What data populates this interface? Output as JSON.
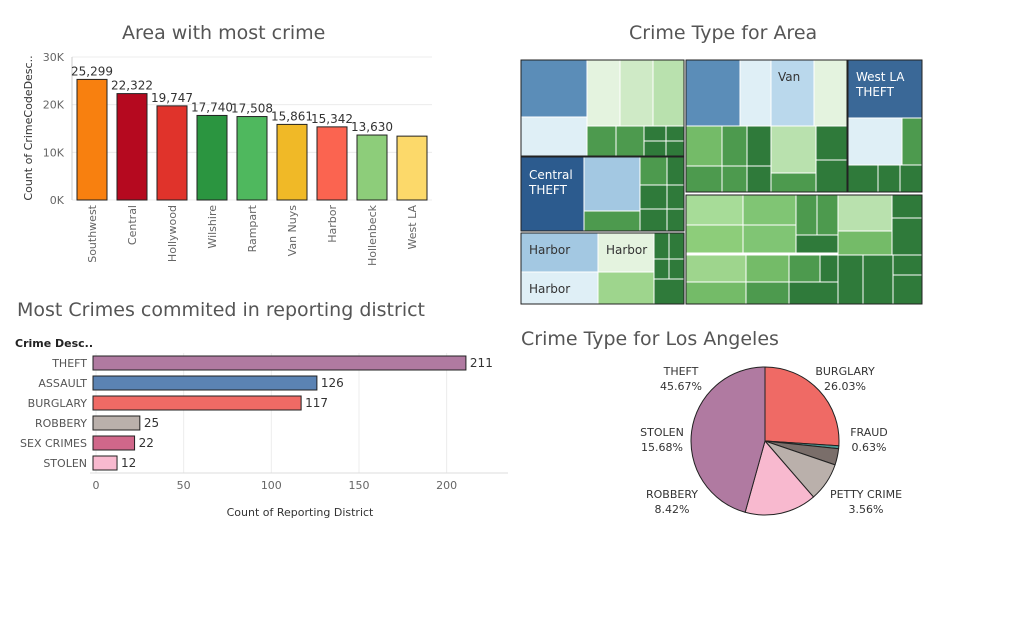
{
  "chart_data": [
    {
      "id": "area",
      "type": "bar",
      "title": "Area with most crime",
      "ylabel": "Count of CrimeCodeDesc..",
      "ylim": [
        0,
        30000
      ],
      "yticks": [
        0,
        10000,
        20000,
        30000
      ],
      "ytick_labels": [
        "0K",
        "10K",
        "20K",
        "30K"
      ],
      "categories": [
        "Southwest",
        "Central",
        "Hollywood",
        "Wilshire",
        "Rampart",
        "Van Nuys",
        "Harbor",
        "Hollenbeck",
        "West LA"
      ],
      "values": [
        25299,
        22322,
        19747,
        17740,
        17508,
        15861,
        15342,
        13630,
        13400
      ],
      "value_labels": [
        "25,299",
        "22,322",
        "19,747",
        "17,740",
        "17,508",
        "15,861",
        "15,342",
        "13,630",
        ""
      ],
      "colors": [
        "#f8800f",
        "#b5091f",
        "#e0332b",
        "#2b9540",
        "#4fb85e",
        "#f0b927",
        "#fb6450",
        "#8dcd7a",
        "#fcd96a"
      ]
    },
    {
      "id": "treemap",
      "type": "treemap",
      "title": "Crime Type for Area",
      "labels": [
        {
          "line1": "Van",
          "line2": ""
        },
        {
          "line1": "West LA",
          "line2": "THEFT"
        },
        {
          "line1": "Central",
          "line2": "THEFT"
        },
        {
          "line1": "Harbor",
          "line2": ""
        },
        {
          "line1": "Harbor",
          "line2": ""
        },
        {
          "line1": "Harbor",
          "line2": ""
        }
      ]
    },
    {
      "id": "district",
      "type": "bar",
      "orientation": "horizontal",
      "title": "Most Crimes commited in reporting district",
      "category_header": "Crime  Desc..",
      "xlabel": "Count of Reporting District",
      "xlim": [
        0,
        235
      ],
      "xticks": [
        0,
        50,
        100,
        150,
        200
      ],
      "categories": [
        "THEFT",
        "ASSAULT",
        "BURGLARY",
        "ROBBERY",
        "SEX CRIMES",
        "STOLEN"
      ],
      "values": [
        211,
        126,
        117,
        25,
        22,
        12
      ],
      "value_labels": [
        "211",
        "126",
        "117",
        "25",
        "22",
        "12"
      ],
      "colors": [
        "#b07aa1",
        "#5b83b3",
        "#ef6a65",
        "#bab0ab",
        "#d0678a",
        "#f8b9cf"
      ]
    },
    {
      "id": "pie",
      "type": "pie",
      "title": "Crime Type for Los Angeles",
      "slices": [
        {
          "label": "BURGLARY",
          "pct_label": "26.03%",
          "value": 26.03,
          "color": "#ef6a65"
        },
        {
          "label": "FRAUD",
          "pct_label": "0.63%",
          "value": 0.63,
          "color": "#4a9a94"
        },
        {
          "label": "PETTY CRIME",
          "pct_label": "3.56%",
          "value": 3.56,
          "color": "#7a6e6a"
        },
        {
          "label": "ROBBERY",
          "pct_label": "8.42%",
          "value": 8.42,
          "color": "#bab0ab"
        },
        {
          "label": "STOLEN",
          "pct_label": "15.68%",
          "value": 15.68,
          "color": "#f8b9cf"
        },
        {
          "label": "THEFT",
          "pct_label": "45.67%",
          "value": 45.67,
          "color": "#b07aa1"
        }
      ]
    }
  ]
}
